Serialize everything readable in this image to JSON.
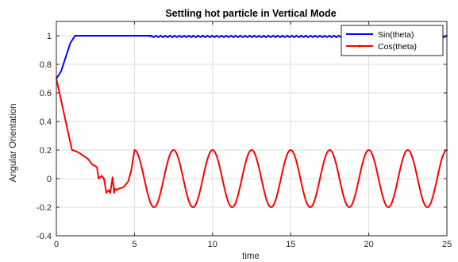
{
  "chart_data": {
    "type": "line",
    "title": "Settling hot particle in Vertical Mode",
    "xlabel": "time",
    "ylabel": "Angular Orientation",
    "xlim": [
      0,
      25
    ],
    "ylim": [
      -0.4,
      1.1
    ],
    "xticks": [
      "0",
      "5",
      "10",
      "15",
      "20",
      "25"
    ],
    "yticks": [
      "-0.4",
      "-0.2",
      "0",
      "0.2",
      "0.4",
      "0.6",
      "0.8",
      "1"
    ],
    "grid": true,
    "legend_position": "top-right",
    "series": [
      {
        "name": "Sin(theta)",
        "color": "#0000ff",
        "description_points": {
          "x": [
            0,
            0.3,
            0.6,
            0.9,
            1.2,
            2.0,
            3.0,
            4.0,
            5.0,
            6.0
          ],
          "y": [
            0.7,
            0.75,
            0.85,
            0.95,
            1.0,
            1.0,
            1.0,
            1.0,
            1.0,
            1.0
          ]
        },
        "steady_state": {
          "value": 0.995,
          "amplitude": 0.005,
          "period": 0.3,
          "from_x": 6.0
        }
      },
      {
        "name": "Cos(theta)",
        "color": "#ff0000",
        "x": [
          0,
          0.3,
          0.6,
          0.9,
          1.0,
          1.3,
          1.6,
          2.0,
          2.3,
          2.6,
          2.7,
          2.9,
          3.05,
          3.2,
          3.35,
          3.45,
          3.6,
          3.7,
          3.75,
          3.85,
          4.0,
          4.3,
          4.6,
          4.8,
          5.0
        ],
        "y": [
          0.7,
          0.55,
          0.4,
          0.25,
          0.2,
          0.19,
          0.17,
          0.14,
          0.1,
          0.08,
          0.0,
          0.02,
          0.0,
          -0.1,
          -0.08,
          -0.1,
          0.01,
          -0.1,
          -0.07,
          -0.08,
          -0.07,
          -0.06,
          -0.02,
          0.06,
          0.2
        ],
        "steady_state": {
          "center": 0.0,
          "amplitude": 0.2,
          "period": 2.5,
          "peak_at_x": 5.0
        }
      }
    ]
  }
}
